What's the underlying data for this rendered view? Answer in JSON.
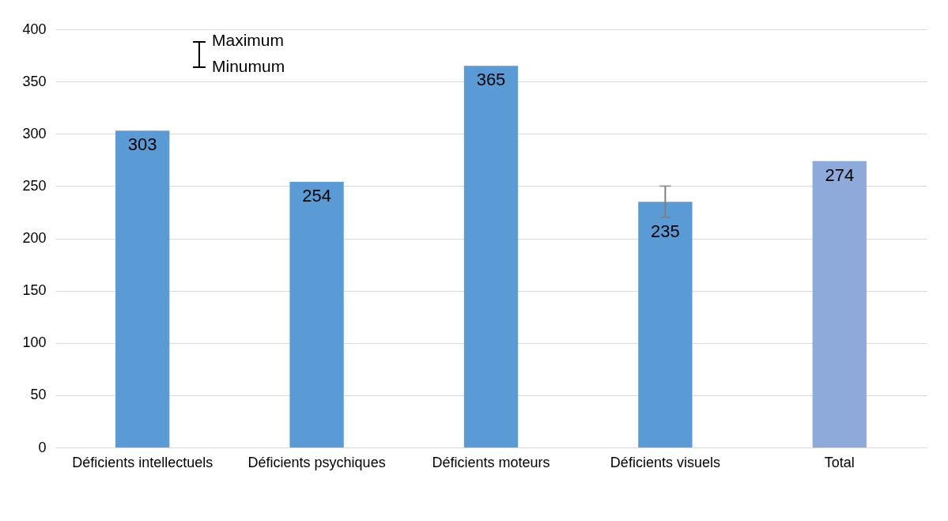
{
  "chart_data": {
    "type": "bar",
    "categories": [
      "Déficients intellectuels",
      "Déficients psychiques",
      "Déficients moteurs",
      "Déficients visuels",
      "Total"
    ],
    "values": [
      303,
      254,
      365,
      235,
      274
    ],
    "colors": [
      "#5b9bd5",
      "#5b9bd5",
      "#5b9bd5",
      "#5b9bd5",
      "#8eaadb"
    ],
    "errors": [
      null,
      null,
      null,
      [
        220,
        250
      ],
      null
    ],
    "ylim": [
      0,
      400
    ],
    "yticks": [
      0,
      50,
      100,
      150,
      200,
      250,
      300,
      350,
      400
    ],
    "grid": "y",
    "data_labels": true,
    "annotations": [
      "Maximum",
      "Minumum"
    ]
  }
}
